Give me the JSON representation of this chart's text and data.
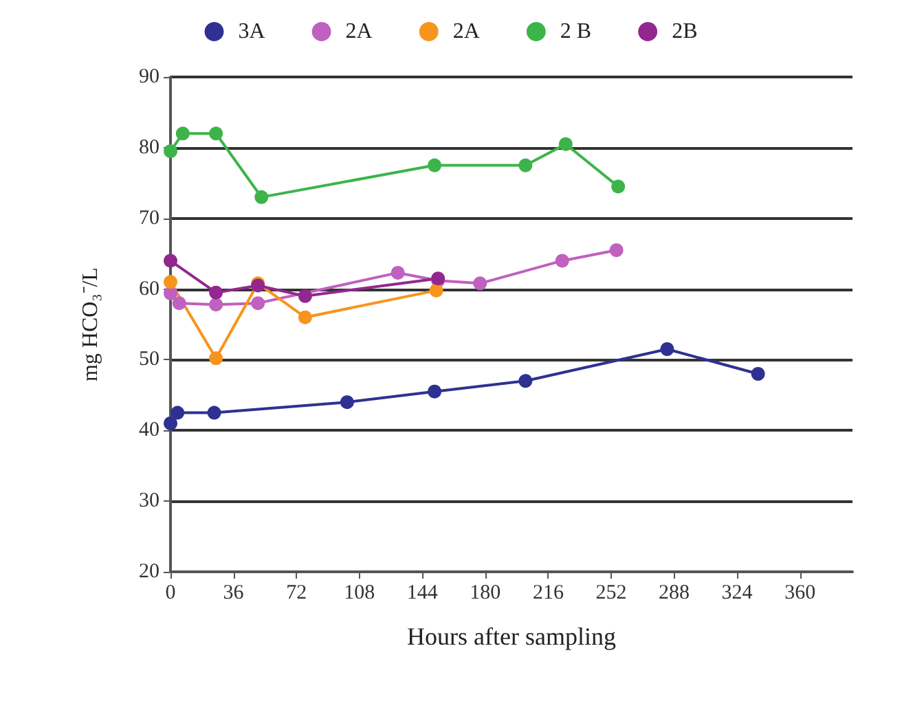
{
  "chart_data": {
    "type": "line",
    "xlabel": "Hours after sampling",
    "ylabel": "mg HCO₃⁻/L",
    "xlim": [
      0,
      390
    ],
    "xticks": [
      0,
      36,
      72,
      108,
      144,
      180,
      216,
      252,
      288,
      324,
      360
    ],
    "ylim": [
      20,
      90
    ],
    "yticks": [
      20,
      30,
      40,
      50,
      60,
      70,
      80,
      90
    ],
    "grid": "y",
    "legend": "top",
    "marker": "circle",
    "line_style": "solid",
    "series": [
      {
        "name": "3A",
        "color": "#2e3192",
        "x": [
          0,
          4,
          25,
          101,
          151,
          203,
          284,
          336
        ],
        "values": [
          41,
          42.5,
          42.5,
          44,
          45.5,
          47,
          51.5,
          48
        ]
      },
      {
        "name": "2A",
        "color": "#c060c0",
        "x": [
          0,
          5,
          26,
          50,
          130,
          153,
          177,
          224,
          255
        ],
        "values": [
          59.4,
          58,
          57.8,
          58,
          62.3,
          61.2,
          60.8,
          64,
          65.5
        ]
      },
      {
        "name": "2A",
        "color": "#f7941d",
        "x": [
          0,
          26,
          50,
          77,
          152
        ],
        "values": [
          61,
          50.2,
          60.8,
          56,
          59.8
        ]
      },
      {
        "name": "2 B",
        "color": "#3cb44a",
        "x": [
          0,
          7,
          26,
          52,
          151,
          203,
          226,
          256
        ],
        "values": [
          79.5,
          82,
          82,
          73,
          77.5,
          77.5,
          80.5,
          74.5
        ]
      },
      {
        "name": "2B",
        "color": "#92278f",
        "x": [
          0,
          26,
          50,
          77,
          153
        ],
        "values": [
          64,
          59.5,
          60.5,
          59,
          61.5
        ]
      }
    ]
  }
}
